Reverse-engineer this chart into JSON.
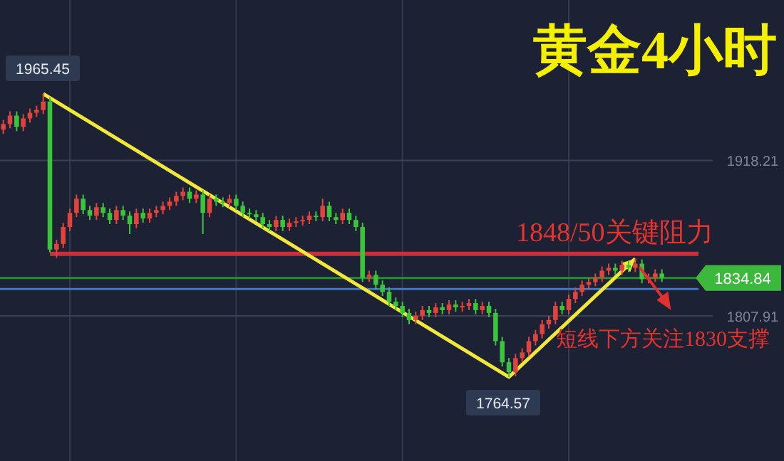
{
  "chart_data": {
    "type": "candlestick",
    "title": "黄金4小时",
    "categories": [
      null,
      null,
      null,
      null,
      null,
      null,
      null,
      null,
      null,
      null,
      null,
      null,
      null,
      null,
      null,
      null,
      null,
      null,
      null,
      null,
      null,
      null,
      null,
      null,
      null,
      null,
      null,
      null,
      null,
      null,
      null,
      null,
      null,
      null,
      null,
      null,
      null,
      null,
      null,
      null,
      null,
      null,
      null,
      null,
      null,
      null,
      null,
      null,
      null,
      null,
      null,
      null,
      null,
      null,
      null,
      null,
      null,
      null,
      null,
      null,
      null,
      null,
      null,
      null,
      null,
      null,
      null,
      null,
      null,
      null,
      null,
      null,
      null,
      null,
      null,
      null,
      null,
      null,
      null,
      null,
      null,
      null,
      null,
      null,
      null,
      null,
      null,
      null,
      null,
      null,
      null,
      null,
      null,
      null,
      null,
      null,
      null,
      null,
      null,
      null
    ],
    "ohlc": [
      [
        1940,
        1947,
        1937,
        1944
      ],
      [
        1944,
        1953,
        1941,
        1950
      ],
      [
        1950,
        1953,
        1939,
        1942
      ],
      [
        1942,
        1951,
        1939,
        1948
      ],
      [
        1948,
        1955,
        1945,
        1952
      ],
      [
        1952,
        1957,
        1949,
        1954
      ],
      [
        1954,
        1965.45,
        1951,
        1960
      ],
      [
        1960,
        1963,
        1853,
        1855
      ],
      [
        1855,
        1862,
        1849,
        1859
      ],
      [
        1859,
        1874,
        1856,
        1871
      ],
      [
        1871,
        1884,
        1868,
        1881
      ],
      [
        1881,
        1894,
        1878,
        1891
      ],
      [
        1891,
        1894,
        1880,
        1883
      ],
      [
        1883,
        1886,
        1876,
        1879
      ],
      [
        1879,
        1888,
        1876,
        1885
      ],
      [
        1885,
        1888,
        1878,
        1881
      ],
      [
        1881,
        1884,
        1873,
        1876
      ],
      [
        1876,
        1886,
        1873,
        1883
      ],
      [
        1883,
        1886,
        1876,
        1879
      ],
      [
        1879,
        1882,
        1866,
        1873
      ],
      [
        1873,
        1884,
        1870,
        1881
      ],
      [
        1881,
        1884,
        1874,
        1877
      ],
      [
        1877,
        1884,
        1874,
        1881
      ],
      [
        1881,
        1886,
        1878,
        1883
      ],
      [
        1883,
        1889,
        1880,
        1886
      ],
      [
        1886,
        1892,
        1883,
        1889
      ],
      [
        1889,
        1896,
        1886,
        1893
      ],
      [
        1893,
        1899,
        1890,
        1896
      ],
      [
        1896,
        1899,
        1888,
        1891
      ],
      [
        1891,
        1897,
        1888,
        1894
      ],
      [
        1894,
        1897,
        1866,
        1881
      ],
      [
        1881,
        1894,
        1878,
        1891
      ],
      [
        1891,
        1894,
        1886,
        1889
      ],
      [
        1889,
        1892,
        1885,
        1888
      ],
      [
        1888,
        1894,
        1885,
        1891
      ],
      [
        1891,
        1894,
        1883,
        1886
      ],
      [
        1886,
        1889,
        1878,
        1881
      ],
      [
        1881,
        1884,
        1877,
        1880
      ],
      [
        1880,
        1883,
        1875,
        1878
      ],
      [
        1878,
        1881,
        1870,
        1873
      ],
      [
        1873,
        1876,
        1868,
        1871
      ],
      [
        1871,
        1879,
        1868,
        1876
      ],
      [
        1876,
        1879,
        1868,
        1871
      ],
      [
        1871,
        1877,
        1868,
        1874
      ],
      [
        1874,
        1878,
        1871,
        1875
      ],
      [
        1875,
        1879,
        1872,
        1876
      ],
      [
        1876,
        1882,
        1873,
        1879
      ],
      [
        1879,
        1882,
        1875,
        1878
      ],
      [
        1878,
        1891,
        1875,
        1886
      ],
      [
        1886,
        1889,
        1875,
        1878
      ],
      [
        1878,
        1881,
        1873,
        1876
      ],
      [
        1876,
        1884,
        1873,
        1881
      ],
      [
        1881,
        1884,
        1873,
        1876
      ],
      [
        1876,
        1879,
        1868,
        1871
      ],
      [
        1871,
        1874,
        1832,
        1835
      ],
      [
        1835,
        1840,
        1832,
        1837
      ],
      [
        1837,
        1840,
        1827,
        1830
      ],
      [
        1830,
        1833,
        1822,
        1825
      ],
      [
        1825,
        1828,
        1815,
        1818
      ],
      [
        1818,
        1821,
        1812,
        1815
      ],
      [
        1815,
        1818,
        1807,
        1810
      ],
      [
        1810,
        1813,
        1802,
        1805
      ],
      [
        1805,
        1811,
        1802,
        1808
      ],
      [
        1808,
        1815,
        1805,
        1812
      ],
      [
        1812,
        1815,
        1807,
        1810
      ],
      [
        1810,
        1817,
        1807,
        1814
      ],
      [
        1814,
        1817,
        1809,
        1812
      ],
      [
        1812,
        1819,
        1809,
        1816
      ],
      [
        1816,
        1819,
        1811,
        1814
      ],
      [
        1814,
        1818,
        1811,
        1815
      ],
      [
        1815,
        1820,
        1812,
        1817
      ],
      [
        1817,
        1820,
        1809,
        1812
      ],
      [
        1812,
        1818,
        1809,
        1815
      ],
      [
        1815,
        1818,
        1807,
        1810
      ],
      [
        1810,
        1813,
        1787,
        1790
      ],
      [
        1790,
        1793,
        1772,
        1775
      ],
      [
        1775,
        1778,
        1764.57,
        1768
      ],
      [
        1768,
        1781,
        1765,
        1778
      ],
      [
        1778,
        1785,
        1775,
        1782
      ],
      [
        1782,
        1793,
        1779,
        1790
      ],
      [
        1790,
        1798,
        1787,
        1795
      ],
      [
        1795,
        1805,
        1792,
        1802
      ],
      [
        1802,
        1808,
        1799,
        1805
      ],
      [
        1805,
        1818,
        1802,
        1815
      ],
      [
        1815,
        1818,
        1809,
        1812
      ],
      [
        1812,
        1823,
        1809,
        1820
      ],
      [
        1820,
        1828,
        1817,
        1825
      ],
      [
        1825,
        1833,
        1822,
        1830
      ],
      [
        1830,
        1835,
        1827,
        1832
      ],
      [
        1832,
        1838,
        1829,
        1835
      ],
      [
        1835,
        1843,
        1832,
        1840
      ],
      [
        1840,
        1845,
        1837,
        1842
      ],
      [
        1842,
        1845,
        1837,
        1840
      ],
      [
        1840,
        1847,
        1837,
        1844
      ],
      [
        1844,
        1847,
        1839,
        1842
      ],
      [
        1842,
        1848.5,
        1839,
        1845
      ],
      [
        1845,
        1848,
        1831,
        1834
      ],
      [
        1834,
        1838,
        1831,
        1835
      ],
      [
        1835,
        1841,
        1832,
        1838
      ],
      [
        1838,
        1841,
        1832,
        1834.84
      ]
    ],
    "ylim": [
      1705,
      2032
    ],
    "yticks": [
      1918.21,
      1807.91
    ],
    "grid": true,
    "ref_lines": [
      {
        "axis": "y",
        "value": 1852,
        "label": "1848/50关键阻力",
        "color": "#c8303a"
      },
      {
        "axis": "y",
        "value": 1834.84,
        "label": "1834.84",
        "color": "#2f8a3a"
      },
      {
        "axis": "y",
        "value": 1827,
        "label": "短线下方关注1830支撑",
        "color": "#3a78c8"
      }
    ],
    "annotations": [
      {
        "text": "1965.45",
        "y": 1965.45
      },
      {
        "text": "1764.57",
        "y": 1764.57
      }
    ]
  }
}
